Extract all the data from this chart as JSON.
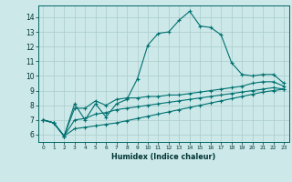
{
  "xlabel": "Humidex (Indice chaleur)",
  "bg_color": "#cce8e8",
  "grid_color": "#aacccc",
  "line_color": "#007070",
  "xlim": [
    -0.5,
    23.5
  ],
  "ylim": [
    5.5,
    14.8
  ],
  "xticks": [
    0,
    1,
    2,
    3,
    4,
    5,
    6,
    7,
    8,
    9,
    10,
    11,
    12,
    13,
    14,
    15,
    16,
    17,
    18,
    19,
    20,
    21,
    22,
    23
  ],
  "yticks": [
    6,
    7,
    8,
    9,
    10,
    11,
    12,
    13,
    14
  ],
  "line1_x": [
    0,
    1,
    2,
    3,
    4,
    5,
    6,
    7,
    8,
    9,
    10,
    11,
    12,
    13,
    14,
    15,
    16,
    17,
    18,
    19,
    20,
    21,
    22,
    23
  ],
  "line1_y": [
    7.0,
    6.8,
    5.9,
    8.1,
    7.0,
    8.1,
    7.2,
    8.1,
    8.4,
    9.8,
    12.1,
    12.9,
    13.0,
    13.8,
    14.4,
    13.4,
    13.3,
    12.8,
    10.9,
    10.1,
    10.0,
    10.1,
    10.1,
    9.5
  ],
  "line2_x": [
    0,
    1,
    2,
    3,
    4,
    5,
    6,
    7,
    8,
    9,
    10,
    11,
    12,
    13,
    14,
    15,
    16,
    17,
    18,
    19,
    20,
    21,
    22,
    23
  ],
  "line2_y": [
    7.0,
    6.8,
    5.9,
    7.8,
    7.8,
    8.3,
    8.0,
    8.4,
    8.5,
    8.5,
    8.6,
    8.6,
    8.7,
    8.7,
    8.8,
    8.9,
    9.0,
    9.1,
    9.2,
    9.3,
    9.5,
    9.6,
    9.6,
    9.3
  ],
  "line3_x": [
    0,
    1,
    2,
    3,
    4,
    5,
    6,
    7,
    8,
    9,
    10,
    11,
    12,
    13,
    14,
    15,
    16,
    17,
    18,
    19,
    20,
    21,
    22,
    23
  ],
  "line3_y": [
    7.0,
    6.8,
    5.9,
    7.0,
    7.1,
    7.4,
    7.5,
    7.7,
    7.8,
    7.9,
    8.0,
    8.1,
    8.2,
    8.3,
    8.4,
    8.5,
    8.6,
    8.7,
    8.8,
    8.9,
    9.0,
    9.1,
    9.2,
    9.1
  ],
  "line4_x": [
    0,
    1,
    2,
    3,
    4,
    5,
    6,
    7,
    8,
    9,
    10,
    11,
    12,
    13,
    14,
    15,
    16,
    17,
    18,
    19,
    20,
    21,
    22,
    23
  ],
  "line4_y": [
    7.0,
    6.8,
    5.9,
    6.4,
    6.5,
    6.6,
    6.7,
    6.8,
    6.95,
    7.1,
    7.25,
    7.4,
    7.55,
    7.7,
    7.85,
    8.0,
    8.15,
    8.3,
    8.45,
    8.6,
    8.75,
    8.9,
    9.0,
    9.1
  ]
}
